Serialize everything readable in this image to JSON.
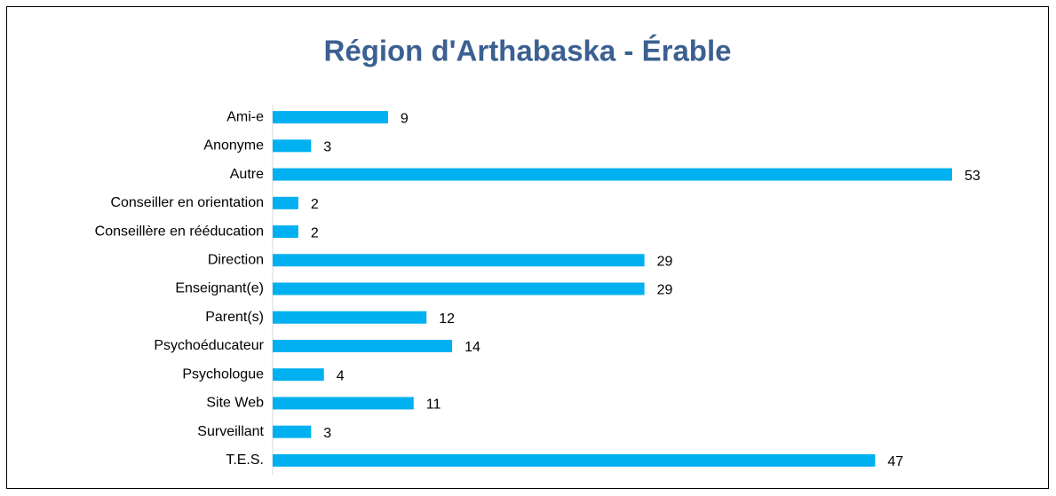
{
  "chart_data": {
    "type": "bar",
    "orientation": "horizontal",
    "title": "Région d'Arthabaska - Érable",
    "categories": [
      "Ami-e",
      "Anonyme",
      "Autre",
      "Conseiller en orientation",
      "Conseillère en rééducation",
      "Direction",
      "Enseignant(e) ",
      "Parent(s)",
      "Psychoéducateur",
      "Psychologue",
      "Site Web",
      "Surveillant",
      "T.E.S."
    ],
    "values": [
      9,
      3,
      53,
      2,
      2,
      29,
      29,
      12,
      14,
      4,
      11,
      3,
      47
    ],
    "color": "#00b0f0",
    "xlim": [
      0,
      53
    ]
  }
}
